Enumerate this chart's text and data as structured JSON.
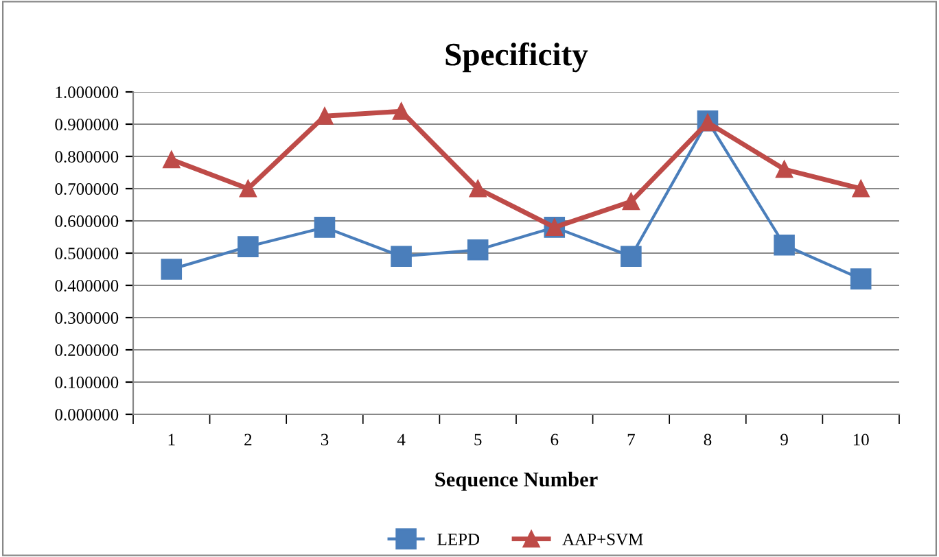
{
  "chart_data": {
    "type": "line",
    "title": "Specificity",
    "xlabel": "Sequence Number",
    "categories": [
      "1",
      "2",
      "3",
      "4",
      "5",
      "6",
      "7",
      "8",
      "9",
      "10"
    ],
    "series": [
      {
        "name": "LEPD",
        "color": "#4a7ebb",
        "marker": "square",
        "values": [
          0.45,
          0.52,
          0.58,
          0.49,
          0.51,
          0.58,
          0.49,
          0.91,
          0.525,
          0.42
        ]
      },
      {
        "name": "AAP+SVM",
        "color": "#be4b48",
        "marker": "triangle",
        "values": [
          0.79,
          0.7,
          0.925,
          0.94,
          0.7,
          0.58,
          0.66,
          0.905,
          0.76,
          0.7
        ]
      }
    ],
    "ylim": [
      0,
      1
    ],
    "yticks": [
      {
        "value": 0,
        "label": "0.000000"
      },
      {
        "value": 0.1,
        "label": "0.100000"
      },
      {
        "value": 0.2,
        "label": "0.200000"
      },
      {
        "value": 0.3,
        "label": "0.300000"
      },
      {
        "value": 0.4,
        "label": "0.400000"
      },
      {
        "value": 0.5,
        "label": "0.500000"
      },
      {
        "value": 0.6,
        "label": "0.600000"
      },
      {
        "value": 0.7,
        "label": "0.700000"
      },
      {
        "value": 0.8,
        "label": "0.800000"
      },
      {
        "value": 0.9,
        "label": "0.900000"
      },
      {
        "value": 1,
        "label": "1.000000"
      }
    ],
    "grid": "y",
    "legend": "bottom",
    "line_style": "solid"
  }
}
